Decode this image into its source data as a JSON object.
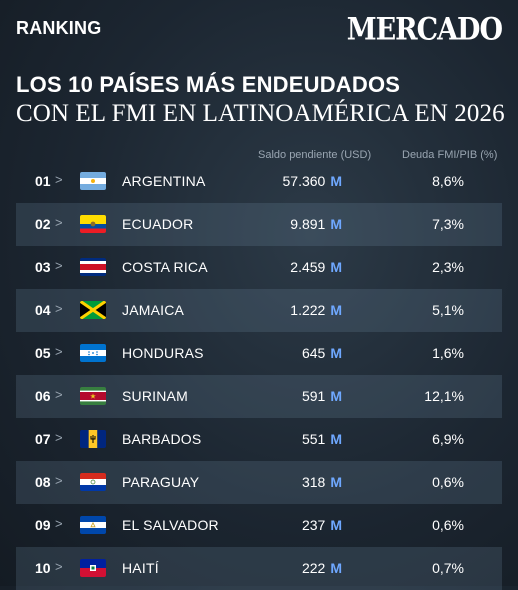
{
  "header": {
    "section": "RANKING",
    "brand": "MERCADO"
  },
  "title": {
    "line1": "LOS 10 PAÍSES MÁS ENDEUDADOS",
    "line2": "CON EL FMI EN LATINOAMÉRICA EN 2026"
  },
  "columns": {
    "amount": "Saldo pendiente (USD)",
    "ratio": "Deuda FMI/PIB (%)"
  },
  "unit_label": "M",
  "chart_data": {
    "type": "table",
    "title": "LOS 10 PAÍSES MÁS ENDEUDADOS CON EL FMI EN LATINOAMÉRICA EN 2026",
    "columns": [
      "Saldo pendiente (USD)",
      "Deuda FMI/PIB (%)"
    ],
    "rows": [
      {
        "rank": "01",
        "country": "ARGENTINA",
        "flag": "argentina-flag-icon",
        "amount": "57.360",
        "ratio": "8,6%"
      },
      {
        "rank": "02",
        "country": "ECUADOR",
        "flag": "ecuador-flag-icon",
        "amount": "9.891",
        "ratio": "7,3%"
      },
      {
        "rank": "03",
        "country": "COSTA RICA",
        "flag": "costa-rica-flag-icon",
        "amount": "2.459",
        "ratio": "2,3%"
      },
      {
        "rank": "04",
        "country": "JAMAICA",
        "flag": "jamaica-flag-icon",
        "amount": "1.222",
        "ratio": "5,1%"
      },
      {
        "rank": "05",
        "country": "HONDURAS",
        "flag": "honduras-flag-icon",
        "amount": "645",
        "ratio": "1,6%"
      },
      {
        "rank": "06",
        "country": "SURINAM",
        "flag": "suriname-flag-icon",
        "amount": "591",
        "ratio": "12,1%"
      },
      {
        "rank": "07",
        "country": "BARBADOS",
        "flag": "barbados-flag-icon",
        "amount": "551",
        "ratio": "6,9%"
      },
      {
        "rank": "08",
        "country": "PARAGUAY",
        "flag": "paraguay-flag-icon",
        "amount": "318",
        "ratio": "0,6%"
      },
      {
        "rank": "09",
        "country": "EL SALVADOR",
        "flag": "el-salvador-flag-icon",
        "amount": "237",
        "ratio": "0,6%"
      },
      {
        "rank": "10",
        "country": "HAITÍ",
        "flag": "haiti-flag-icon",
        "amount": "222",
        "ratio": "0,7%"
      }
    ]
  }
}
